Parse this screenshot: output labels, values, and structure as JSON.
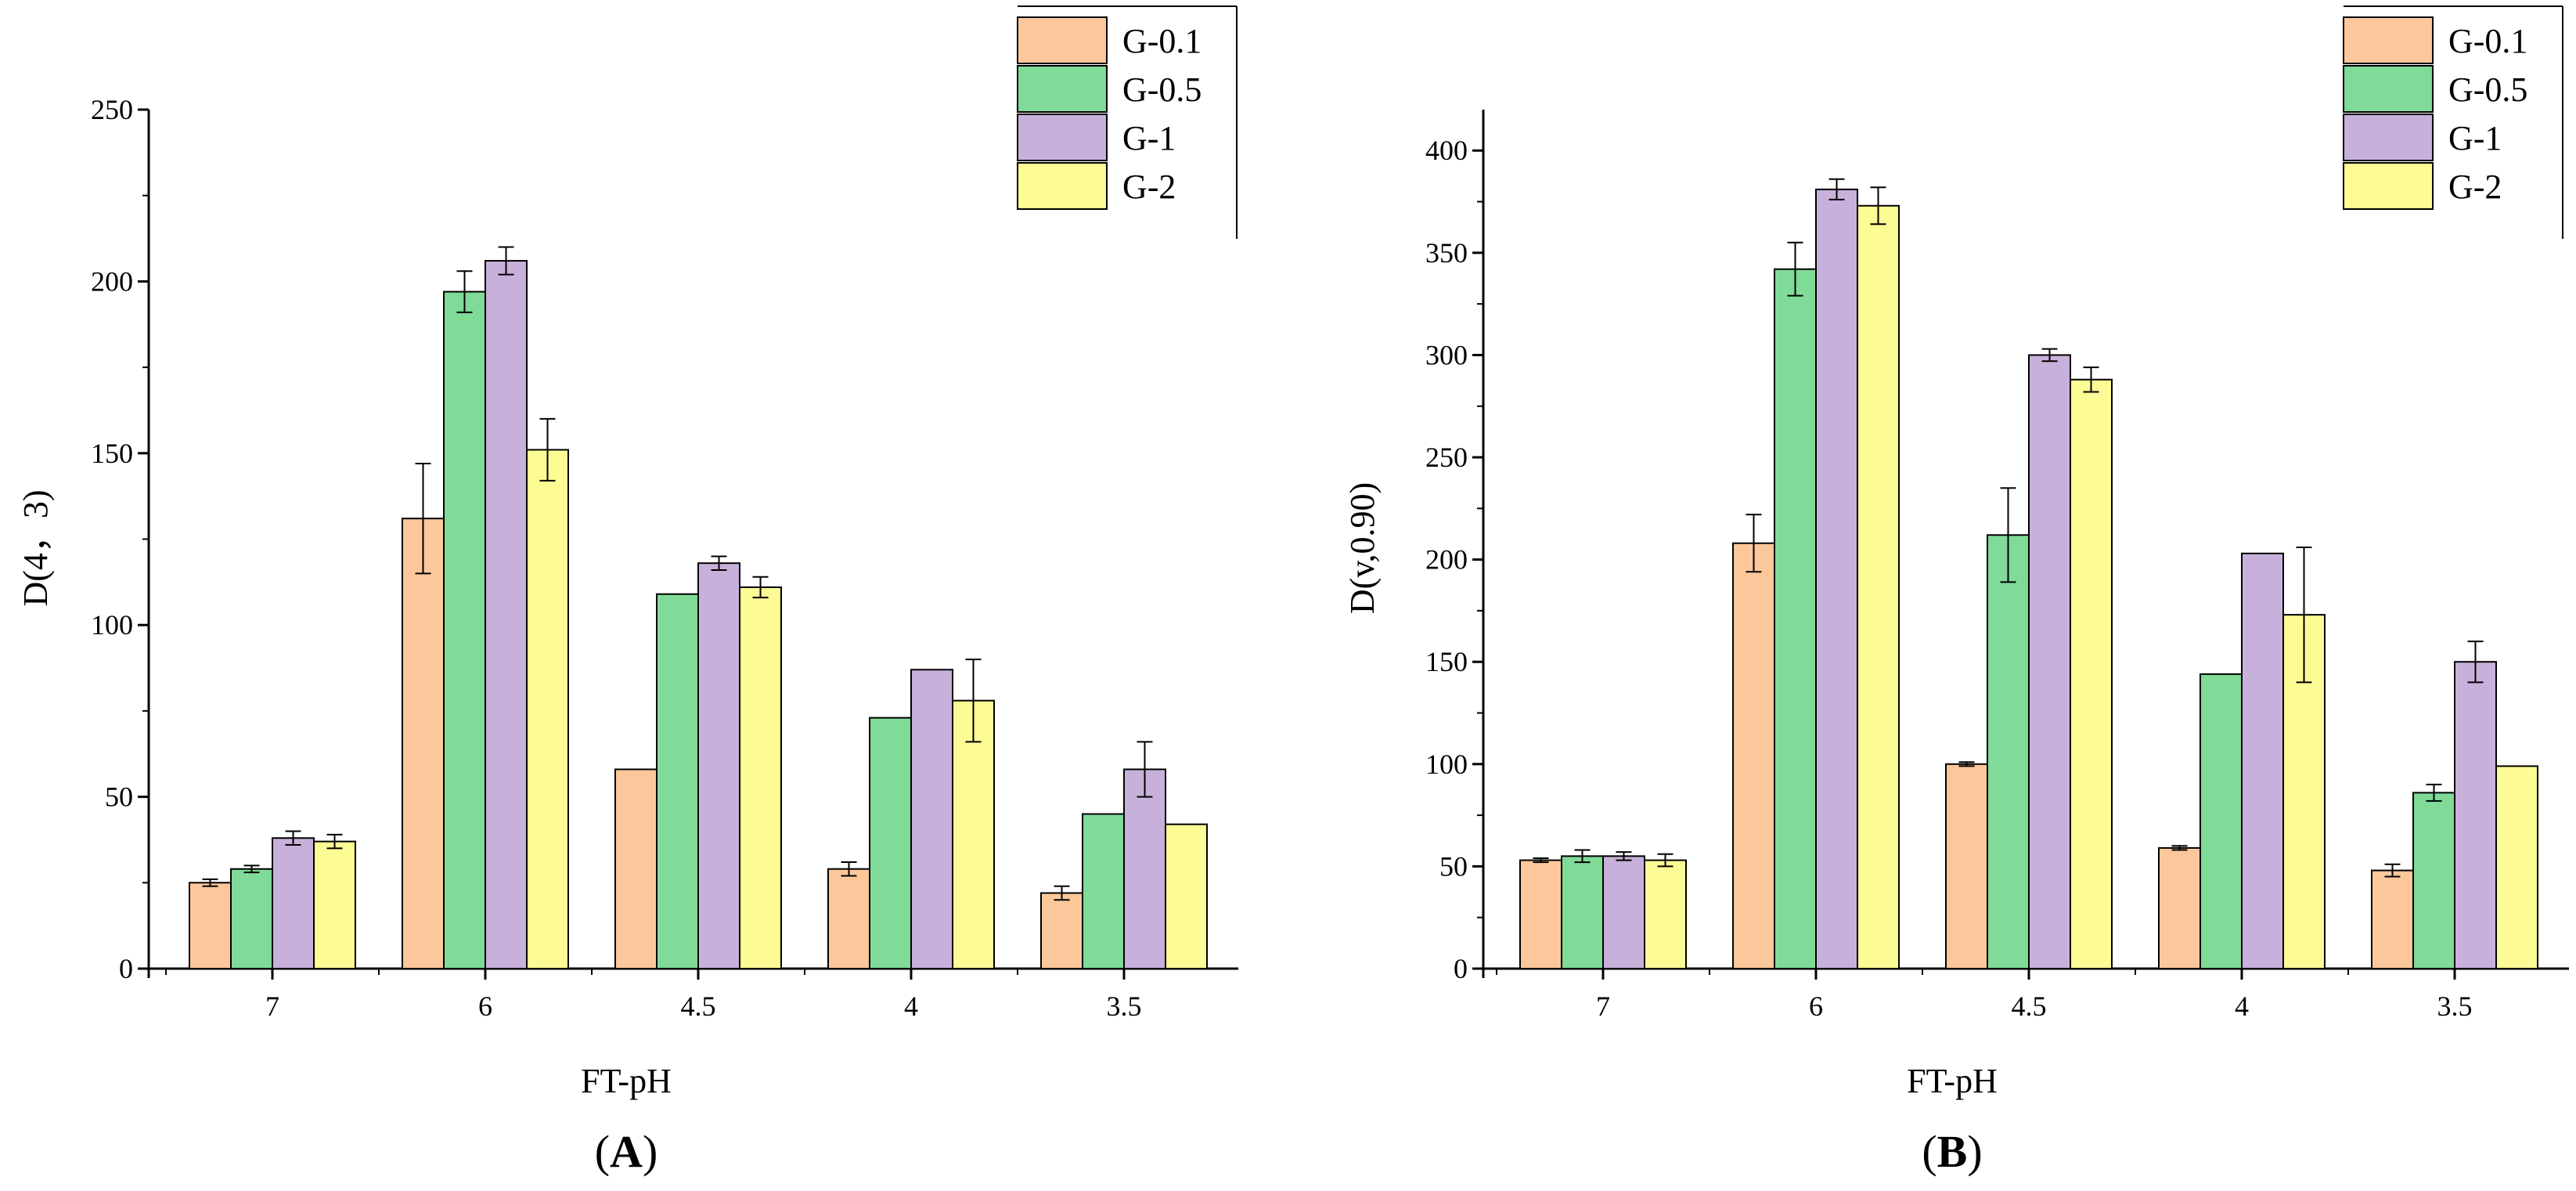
{
  "chart_data": [
    {
      "type": "bar",
      "panel_label": {
        "open": "(",
        "letter": "A",
        "close": ")"
      },
      "title": "",
      "xlabel": "FT-pH",
      "ylabel": "D(4，3)",
      "categories": [
        "7",
        "6",
        "4.5",
        "4",
        "3.5"
      ],
      "ylim": [
        0,
        250
      ],
      "yticks": [
        "0",
        "50",
        "100",
        "150",
        "200",
        "250"
      ],
      "legend_position": "top-right",
      "series": [
        {
          "name": "G-0.1",
          "color": "#FCC89B",
          "values": [
            25,
            131,
            58,
            29,
            22
          ],
          "errors": [
            1,
            16,
            0,
            2,
            2
          ]
        },
        {
          "name": "G-0.5",
          "color": "#80DA98",
          "values": [
            29,
            197,
            109,
            73,
            45
          ],
          "errors": [
            1,
            6,
            0,
            0,
            0
          ]
        },
        {
          "name": "G-1",
          "color": "#C7B1DA",
          "values": [
            38,
            206,
            118,
            87,
            58
          ],
          "errors": [
            2,
            4,
            2,
            0,
            8
          ]
        },
        {
          "name": "G-2",
          "color": "#FDFB94",
          "values": [
            37,
            151,
            111,
            78,
            42
          ],
          "errors": [
            2,
            9,
            3,
            12,
            0
          ]
        }
      ]
    },
    {
      "type": "bar",
      "panel_label": {
        "open": "(",
        "letter": "B",
        "close": ")"
      },
      "title": "",
      "xlabel": "FT-pH",
      "ylabel": "D(v,0.90)",
      "categories": [
        "7",
        "6",
        "4.5",
        "4",
        "3.5"
      ],
      "ylim": [
        0,
        420
      ],
      "yticks": [
        "0",
        "50",
        "100",
        "150",
        "200",
        "250",
        "300",
        "350",
        "400"
      ],
      "legend_position": "top-right",
      "series": [
        {
          "name": "G-0.1",
          "color": "#FCC89B",
          "values": [
            53,
            208,
            100,
            59,
            48
          ],
          "errors": [
            1,
            14,
            1,
            1,
            3
          ]
        },
        {
          "name": "G-0.5",
          "color": "#80DA98",
          "values": [
            55,
            342,
            212,
            144,
            86
          ],
          "errors": [
            3,
            13,
            23,
            0,
            4
          ]
        },
        {
          "name": "G-1",
          "color": "#C7B1DA",
          "values": [
            55,
            381,
            300,
            203,
            150
          ],
          "errors": [
            2,
            5,
            3,
            0,
            10
          ]
        },
        {
          "name": "G-2",
          "color": "#FDFB94",
          "values": [
            53,
            373,
            288,
            173,
            99
          ],
          "errors": [
            3,
            9,
            6,
            33,
            0
          ]
        }
      ]
    }
  ]
}
